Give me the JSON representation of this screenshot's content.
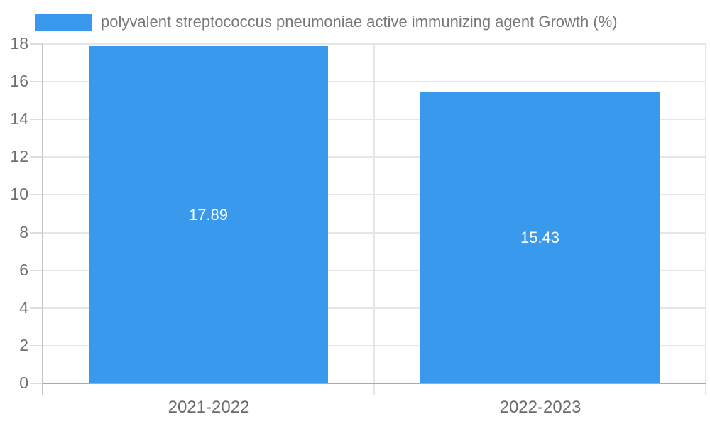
{
  "legend": {
    "label": "polyvalent streptococcus pneumoniae active immunizing agent Growth (%)",
    "swatch_color": "#3999ec"
  },
  "colors": {
    "bar": "#3999ec",
    "bar_label": "#ffffff",
    "grid": "#e6e6e6",
    "axis_line": "#c4c4c4",
    "baseline": "#a9a9a9",
    "tick": "#dedede",
    "tick_text": "#6f6f6f",
    "x_label_text": "#6b6b6b",
    "legend_text": "#787878",
    "background": "#ffffff"
  },
  "chart_data": {
    "type": "bar",
    "title": "",
    "categories": [
      "2021-2022",
      "2022-2023"
    ],
    "series": [
      {
        "name": "polyvalent streptococcus pneumoniae active immunizing agent Growth (%)",
        "values": [
          17.89,
          15.43
        ]
      }
    ],
    "value_labels": [
      "17.89",
      "15.43"
    ],
    "xlabel": "",
    "ylabel": "",
    "ylim": [
      0,
      18
    ],
    "ytick_step": 2,
    "ytick_labels": [
      "0",
      "2",
      "4",
      "6",
      "8",
      "10",
      "12",
      "14",
      "16",
      "18"
    ],
    "grid": true,
    "legend_position": "top-left",
    "value_label_position": "center-of-bar"
  }
}
